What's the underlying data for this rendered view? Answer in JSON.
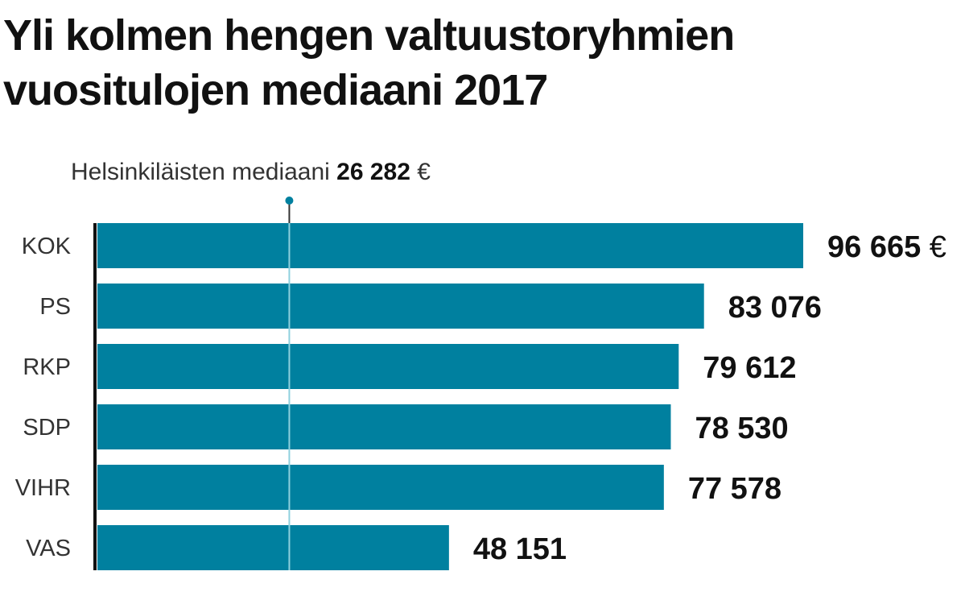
{
  "chart_data": {
    "type": "bar",
    "orientation": "horizontal",
    "title": "Yli kolmen hengen valtuustoryhmien vuositulojen mediaani 2017",
    "categories": [
      "KOK",
      "PS",
      "RKP",
      "SDP",
      "VIHR",
      "VAS"
    ],
    "values": [
      96665,
      83076,
      79612,
      78530,
      77578,
      48151
    ],
    "value_labels": [
      "96 665",
      "83 076",
      "79 612",
      "78 530",
      "77 578",
      "48 151"
    ],
    "first_label_unit": "€",
    "reference": {
      "label": "Helsinkiläisten mediaani",
      "value": 26282,
      "value_label": "26 282",
      "unit": "€"
    },
    "xlim": [
      0,
      96665
    ],
    "grid": false,
    "legend": "none",
    "colors": {
      "bar": "#00809f",
      "reference_line": "#8fd0de",
      "reference_marker": "#00809f",
      "axis": "#111111"
    }
  }
}
